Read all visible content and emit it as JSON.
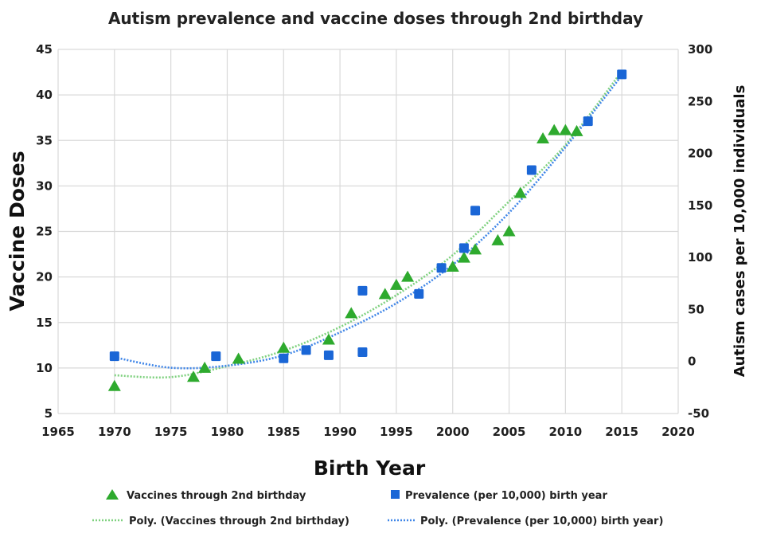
{
  "chart_data": {
    "type": "scatter",
    "title": "Autism prevalence and vaccine doses through 2nd birthday",
    "xlabel": "Birth Year",
    "ylabel": "Vaccine Doses",
    "y2label": "Autism cases per 10,000 individuals",
    "xlim": [
      1965,
      2020
    ],
    "ylim": [
      5,
      45
    ],
    "y2lim": [
      -50,
      300
    ],
    "x_ticks": [
      1965,
      1970,
      1975,
      1980,
      1985,
      1990,
      1995,
      2000,
      2005,
      2010,
      2015,
      2020
    ],
    "y_ticks": [
      5,
      10,
      15,
      20,
      25,
      30,
      35,
      40,
      45
    ],
    "y2_ticks": [
      -50,
      0,
      50,
      100,
      150,
      200,
      250,
      300
    ],
    "grid": true,
    "legend_position": "bottom",
    "colors": {
      "vaccines": "#2eaa2e",
      "prevalence": "#1a66d6",
      "vaccines_trend": "#7fd17f",
      "prevalence_trend": "#3f86e8"
    },
    "series": [
      {
        "name": "Vaccines through 2nd birthday",
        "axis": "left",
        "marker": "triangle",
        "x": [
          1970,
          1977,
          1978,
          1981,
          1985,
          1989,
          1991,
          1994,
          1995,
          1996,
          2000,
          2001,
          2002,
          2004,
          2005,
          2006,
          2008,
          2009,
          2010,
          2011
        ],
        "y": [
          8,
          9,
          10,
          11,
          12.2,
          13.1,
          16,
          18.1,
          19.1,
          20,
          21.1,
          22.1,
          23,
          24,
          25,
          29.2,
          35.2,
          36.1,
          36.1,
          36
        ]
      },
      {
        "name": "Prevalence (per 10,000) birth year",
        "axis": "right",
        "marker": "square",
        "x": [
          1970,
          1979,
          1985,
          1987,
          1989,
          1992,
          1992,
          1997,
          1999,
          2001,
          2002,
          2007,
          2012,
          2015
        ],
        "y": [
          5,
          5,
          3,
          11,
          6,
          68,
          9,
          65,
          90,
          109,
          145,
          184,
          231,
          276
        ]
      },
      {
        "name": "Poly. (Vaccines through 2nd birthday)",
        "axis": "left",
        "trend_of": "Vaccines through 2nd birthday",
        "style": "dotted",
        "x": [
          1970,
          1975,
          1980,
          1985,
          1990,
          1995,
          2000,
          2005,
          2010,
          2015
        ],
        "y": [
          9.2,
          9,
          10.2,
          11.9,
          14.5,
          18,
          22.4,
          28.3,
          34.5,
          42.6
        ]
      },
      {
        "name": "Poly. (Prevalence (per 10,000) birth year)",
        "axis": "right",
        "trend_of": "Prevalence (per 10,000) birth year",
        "style": "dotted",
        "x": [
          1970,
          1975,
          1980,
          1985,
          1990,
          1995,
          2000,
          2005,
          2010,
          2015
        ],
        "y": [
          4,
          -6,
          -4,
          6,
          28,
          56,
          93,
          143,
          206,
          275
        ]
      }
    ],
    "legend": [
      {
        "label": "Vaccines through 2nd birthday",
        "marker": "triangle"
      },
      {
        "label": "Prevalence (per 10,000) birth year",
        "marker": "square"
      },
      {
        "label": "Poly. (Vaccines through 2nd birthday)",
        "marker": "dotted-line-green"
      },
      {
        "label": "Poly. (Prevalence (per 10,000) birth year)",
        "marker": "dotted-line-blue"
      }
    ]
  }
}
